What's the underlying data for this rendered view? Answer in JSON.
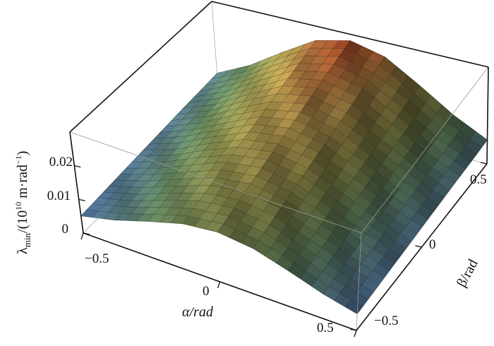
{
  "chart_data": {
    "type": "surface3d",
    "xlabel": "α/rad",
    "ylabel": "β/rad",
    "zlabel": "λmin/(10¹⁰ m·rad⁻¹)",
    "zlabel_parts": {
      "symbol": "λ",
      "sub": "min",
      "unit_pre": "/(10",
      "exp": "10",
      "unit_mid": " m·rad",
      "exp2": "−1",
      "unit_post": ")"
    },
    "xlim": [
      -0.5,
      0.5
    ],
    "ylim": [
      -0.5,
      0.5
    ],
    "zlim": [
      0,
      0.03
    ],
    "xticks": [
      "−0.5",
      "0",
      "0.5"
    ],
    "xtick_values": [
      -0.5,
      0,
      0.5
    ],
    "yticks": [
      "−0.5",
      "0",
      "0.5"
    ],
    "ytick_values": [
      -0.5,
      0,
      0.5
    ],
    "zticks": [
      "0",
      "0.01",
      "0.02"
    ],
    "ztick_values": [
      0,
      0.01,
      0.02
    ],
    "alpha": [
      -0.5,
      -0.375,
      -0.25,
      -0.125,
      0,
      0.125,
      0.25,
      0.375,
      0.5
    ],
    "beta": [
      -0.5,
      -0.375,
      -0.25,
      -0.125,
      0,
      0.125,
      0.25,
      0.375,
      0.5
    ],
    "z_rows_by_beta": [
      [
        0.0051,
        0.0075,
        0.0108,
        0.0138,
        0.015,
        0.0138,
        0.0108,
        0.0075,
        0.0051
      ],
      [
        0.0054,
        0.0081,
        0.0118,
        0.0152,
        0.0166,
        0.0152,
        0.0118,
        0.0081,
        0.0054
      ],
      [
        0.0057,
        0.0088,
        0.0129,
        0.0167,
        0.0183,
        0.0167,
        0.0129,
        0.0088,
        0.0057
      ],
      [
        0.006,
        0.0094,
        0.014,
        0.0182,
        0.0199,
        0.0182,
        0.014,
        0.0094,
        0.006
      ],
      [
        0.0063,
        0.01,
        0.015,
        0.0196,
        0.0215,
        0.0196,
        0.015,
        0.01,
        0.0063
      ],
      [
        0.0066,
        0.0106,
        0.016,
        0.021,
        0.0231,
        0.021,
        0.016,
        0.0106,
        0.0066
      ],
      [
        0.0069,
        0.0112,
        0.0171,
        0.0226,
        0.0248,
        0.0226,
        0.0171,
        0.0112,
        0.0069
      ],
      [
        0.0071,
        0.0118,
        0.0182,
        0.024,
        0.0264,
        0.024,
        0.0182,
        0.0118,
        0.0071
      ],
      [
        0.0074,
        0.0125,
        0.0192,
        0.0255,
        0.028,
        0.0255,
        0.0192,
        0.0125,
        0.0074
      ]
    ],
    "colormap": [
      "#3b2f8a",
      "#4a6a8a",
      "#5e7f5a",
      "#8a8a4a",
      "#b0904a",
      "#b04a2a"
    ],
    "box": true,
    "mesh": true
  }
}
